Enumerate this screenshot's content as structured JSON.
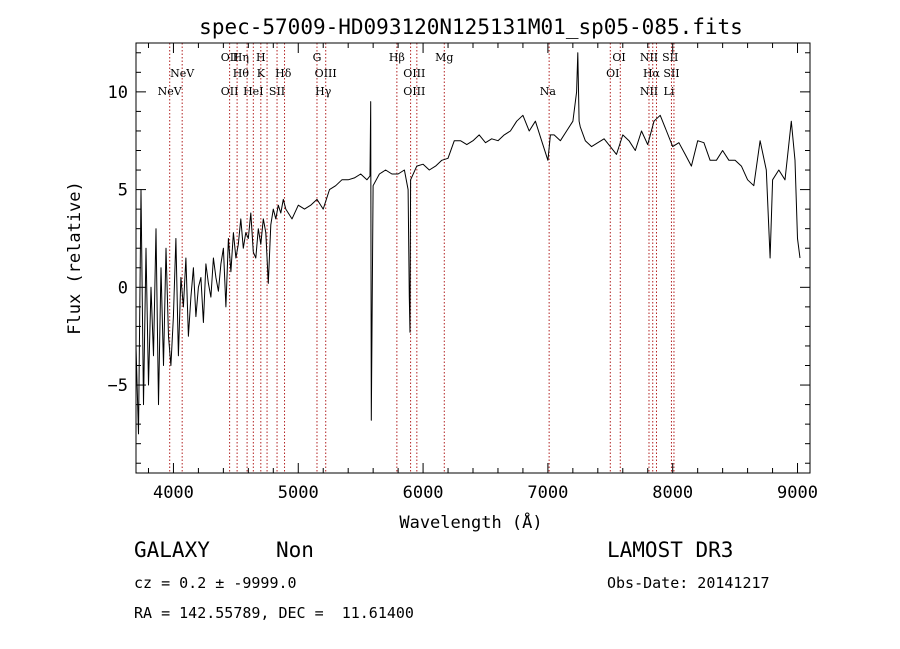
{
  "chart_data": {
    "type": "line",
    "title": "spec-57009-HD093120N125131M01_sp05-085.fits",
    "xlabel": "Wavelength (Å)",
    "ylabel": "Flux (relative)",
    "xlim": [
      3700,
      9100
    ],
    "ylim": [
      -9.5,
      12.5
    ],
    "xticks": [
      4000,
      5000,
      6000,
      7000,
      8000,
      9000
    ],
    "yticks": [
      -5,
      0,
      5,
      10
    ],
    "grid": false,
    "line_color": "#000000",
    "marker_color": "#b22222",
    "series": [
      {
        "x": [
          3700,
          3720,
          3740,
          3760,
          3780,
          3800,
          3820,
          3840,
          3860,
          3880,
          3900,
          3920,
          3940,
          3960,
          3980,
          4000,
          4020,
          4040,
          4060,
          4080,
          4100,
          4120,
          4140,
          4160,
          4180,
          4200,
          4220,
          4240,
          4260,
          4280,
          4300,
          4320,
          4340,
          4360,
          4380,
          4400,
          4420,
          4440,
          4460,
          4480,
          4500,
          4520,
          4540,
          4560,
          4580,
          4600,
          4620,
          4640,
          4660,
          4680,
          4700,
          4720,
          4740,
          4760,
          4780,
          4800,
          4820,
          4840,
          4860,
          4880,
          4900,
          4950,
          5000,
          5050,
          5100,
          5150,
          5200,
          5250,
          5300,
          5350,
          5400,
          5450,
          5500,
          5550,
          5575,
          5580,
          5585,
          5600,
          5650,
          5700,
          5750,
          5800,
          5850,
          5880,
          5890,
          5895,
          5900,
          5950,
          6000,
          6050,
          6100,
          6150,
          6200,
          6250,
          6300,
          6350,
          6400,
          6450,
          6500,
          6550,
          6600,
          6650,
          6700,
          6750,
          6800,
          6850,
          6900,
          6950,
          7000,
          7020,
          7050,
          7100,
          7150,
          7200,
          7230,
          7240,
          7250,
          7260,
          7300,
          7350,
          7400,
          7450,
          7500,
          7550,
          7600,
          7650,
          7700,
          7750,
          7800,
          7850,
          7900,
          7950,
          8000,
          8050,
          8100,
          8150,
          8200,
          8250,
          8300,
          8350,
          8400,
          8450,
          8500,
          8550,
          8600,
          8650,
          8700,
          8750,
          8780,
          8800,
          8850,
          8900,
          8950,
          8980,
          9000,
          9020
        ],
        "y": [
          -3,
          -7.5,
          5,
          -6,
          2,
          -5,
          0,
          -3.5,
          3,
          -6,
          1,
          -4,
          2,
          -2.5,
          -4,
          -1.5,
          2.5,
          -3.5,
          0.5,
          -1,
          1.5,
          -2.5,
          -0.5,
          1,
          -1.5,
          0,
          0.5,
          -1.8,
          1.2,
          0.2,
          -0.5,
          1.5,
          0.5,
          -0.2,
          1.2,
          2,
          -1,
          2.5,
          0.8,
          2.8,
          1.5,
          2.2,
          3.5,
          2,
          2.8,
          2.5,
          3.8,
          1.8,
          1.5,
          3,
          2.2,
          3.5,
          2.8,
          0.2,
          3.2,
          4,
          3.5,
          4.2,
          3.8,
          4.5,
          4,
          3.5,
          4.2,
          4,
          4.2,
          4.5,
          4,
          5,
          5.2,
          5.5,
          5.5,
          5.6,
          5.8,
          5.5,
          5.7,
          9.5,
          -6.8,
          5.2,
          5.8,
          6,
          5.8,
          5.8,
          6,
          5,
          -0.5,
          -2.3,
          5.5,
          6.2,
          6.3,
          6,
          6.2,
          6.5,
          6.6,
          7.5,
          7.5,
          7.3,
          7.5,
          7.8,
          7.4,
          7.6,
          7.5,
          7.8,
          8,
          8.5,
          8.8,
          8,
          8.5,
          7.5,
          6.5,
          7.8,
          7.8,
          7.5,
          8,
          8.5,
          10,
          12,
          8.5,
          8.2,
          7.5,
          7.2,
          7.4,
          7.6,
          7.2,
          6.8,
          7.8,
          7.5,
          7,
          8,
          7.3,
          8.5,
          8.8,
          8,
          7.2,
          7.4,
          6.8,
          6.2,
          7.5,
          7.4,
          6.5,
          6.5,
          7,
          6.5,
          6.5,
          6.2,
          5.5,
          5.2,
          7.5,
          6,
          1.5,
          5.5,
          6,
          5.5,
          8.5,
          6.5,
          2.5,
          1.5
        ]
      }
    ],
    "spectral_lines": [
      {
        "label": "NeV",
        "wavelength": 3970,
        "row": 3
      },
      {
        "label": "NeV",
        "wavelength": 4070,
        "row": 2
      },
      {
        "label": "OII",
        "wavelength": 4450,
        "row": 1
      },
      {
        "label": "OII",
        "wavelength": 4450,
        "row": 3
      },
      {
        "label": "Hη",
        "wavelength": 4540,
        "row": 1
      },
      {
        "label": "Hθ",
        "wavelength": 4540,
        "row": 2
      },
      {
        "label": "HeI",
        "wavelength": 4640,
        "row": 3
      },
      {
        "label": "H",
        "wavelength": 4700,
        "row": 1
      },
      {
        "label": "K",
        "wavelength": 4700,
        "row": 2
      },
      {
        "label": "SII",
        "wavelength": 4830,
        "row": 3
      },
      {
        "label": "Hδ",
        "wavelength": 4880,
        "row": 2
      },
      {
        "label": "G",
        "wavelength": 5150,
        "row": 1
      },
      {
        "label": "OIII",
        "wavelength": 5220,
        "row": 2
      },
      {
        "label": "Hγ",
        "wavelength": 5200,
        "row": 3
      },
      {
        "label": "Hβ",
        "wavelength": 5790,
        "row": 1
      },
      {
        "label": "OIII",
        "wavelength": 5930,
        "row": 2
      },
      {
        "label": "OIII",
        "wavelength": 5930,
        "row": 3
      },
      {
        "label": "Mg",
        "wavelength": 6170,
        "row": 1
      },
      {
        "label": "Na",
        "wavelength": 7000,
        "row": 3
      },
      {
        "label": "OI",
        "wavelength": 7570,
        "row": 1
      },
      {
        "label": "OI",
        "wavelength": 7520,
        "row": 2
      },
      {
        "label": "NII",
        "wavelength": 7810,
        "row": 1
      },
      {
        "label": "SII",
        "wavelength": 7980,
        "row": 1
      },
      {
        "label": "Hα",
        "wavelength": 7830,
        "row": 2
      },
      {
        "label": "SII",
        "wavelength": 7990,
        "row": 2
      },
      {
        "label": "NII",
        "wavelength": 7810,
        "row": 3
      },
      {
        "label": "Li",
        "wavelength": 7970,
        "row": 3
      }
    ],
    "marker_wavelengths": [
      3970,
      4070,
      4450,
      4510,
      4590,
      4640,
      4700,
      4750,
      4830,
      4890,
      5150,
      5220,
      5790,
      5900,
      5950,
      6170,
      7010,
      7500,
      7580,
      7810,
      7840,
      7870,
      7990,
      8010
    ]
  },
  "info": {
    "object_class": "GALAXY",
    "subclass": "Non",
    "survey": "LAMOST DR3",
    "redshift_line": "cz = 0.2 ± -9999.0",
    "obs_date": "Obs-Date: 20141217",
    "coords": "RA = 142.55789, DEC =  11.61400"
  }
}
